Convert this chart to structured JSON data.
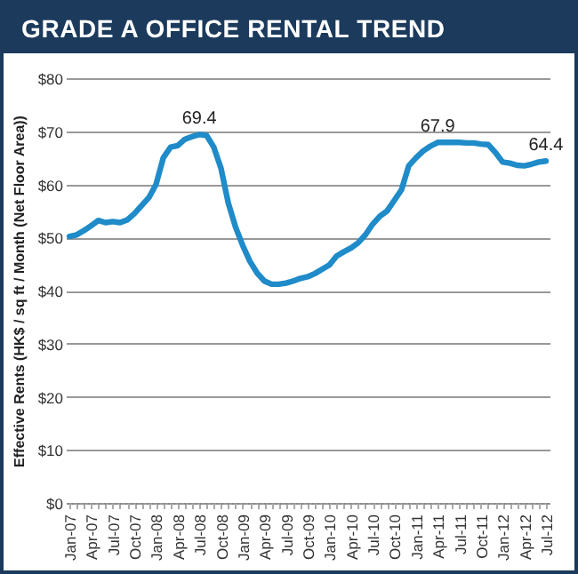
{
  "chart_data": {
    "type": "line",
    "title": "GRADE A OFFICE RENTAL TREND",
    "ylabel": "Effective Rents (HK$ / sq ft / Month (Net Floor Area))",
    "categories": [
      "Jan-07",
      null,
      null,
      "Apr-07",
      null,
      null,
      "Jul-07",
      null,
      null,
      "Oct-07",
      null,
      null,
      "Jan-08",
      null,
      null,
      "Apr-08",
      null,
      null,
      "Jul-08",
      null,
      null,
      "Oct-08",
      null,
      null,
      "Jan-09",
      null,
      null,
      "Apr-09",
      null,
      null,
      "Jul-09",
      null,
      null,
      "Oct-09",
      null,
      null,
      "Jan-10",
      null,
      null,
      "Apr-10",
      null,
      null,
      "Jul-10",
      null,
      null,
      "Oct-10",
      null,
      null,
      "Jan-11",
      null,
      null,
      "Apr-11",
      null,
      null,
      "Jul-11",
      null,
      null,
      "Oct-11",
      null,
      null,
      "Jan-12",
      null,
      null,
      "Apr-12",
      null,
      null,
      "Jul-12"
    ],
    "series": [
      {
        "color": "#1f8bc9",
        "values": [
          50.2,
          50.5,
          51.3,
          52.2,
          53.2,
          52.8,
          53.0,
          52.8,
          53.3,
          54.5,
          56,
          57.5,
          60,
          65,
          67,
          67.3,
          68.5,
          69,
          69.4,
          69.2,
          67,
          63,
          56.5,
          52,
          48.5,
          45.5,
          43.3,
          41.8,
          41.2,
          41.2,
          41.4,
          41.8,
          42.3,
          42.6,
          43.2,
          44,
          44.8,
          46.5,
          47.3,
          48,
          49,
          50.5,
          52.5,
          54,
          55,
          57,
          59,
          63.5,
          65,
          66.3,
          67.2,
          67.9,
          67.9,
          67.9,
          67.9,
          67.8,
          67.8,
          67.6,
          67.5,
          66,
          64.2,
          64,
          63.6,
          63.5,
          63.8,
          64.2,
          64.4
        ]
      }
    ],
    "ylim": [
      0,
      80
    ],
    "yticks": [
      {
        "value": 0,
        "label": "$0"
      },
      {
        "value": 10,
        "label": "$10"
      },
      {
        "value": 20,
        "label": "$20"
      },
      {
        "value": 30,
        "label": "$30"
      },
      {
        "value": 40,
        "label": "$40"
      },
      {
        "value": 50,
        "label": "$50"
      },
      {
        "value": 60,
        "label": "$60"
      },
      {
        "value": 70,
        "label": "$70"
      },
      {
        "value": 80,
        "label": "$80"
      }
    ],
    "grid": "y",
    "marker": "none",
    "annotations": [
      {
        "text": "69.4",
        "x": "Jul-08",
        "y": 69.4
      },
      {
        "text": "67.9",
        "x": "Apr-11",
        "y": 67.9
      },
      {
        "text": "64.4",
        "x": "Jul-12",
        "y": 64.4
      }
    ]
  }
}
